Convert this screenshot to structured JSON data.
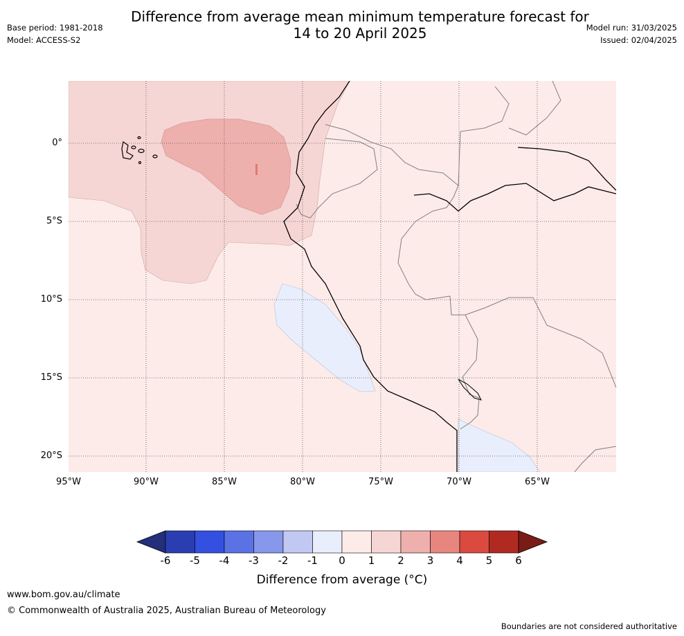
{
  "header": {
    "title_line1": "Difference from average mean minimum temperature forecast for",
    "title_line2": "14 to 20 April 2025",
    "base_period": "Base period: 1981-2018",
    "model": "Model: ACCESS-S2",
    "model_run": "Model run: 31/03/2025",
    "issued": "Issued: 02/04/2025"
  },
  "map": {
    "lat_labels": [
      "0°",
      "5°S",
      "10°S",
      "15°S",
      "20°S"
    ],
    "lon_labels": [
      "95°W",
      "90°W",
      "85°W",
      "80°W",
      "75°W",
      "70°W",
      "65°W"
    ],
    "colors": {
      "anom_0_1": "#fcebe9",
      "anom_1_2": "#f6d6d4",
      "anom_2_3": "#eeb0ad",
      "anom_neg1_0": "#e9eefc"
    }
  },
  "colorbar": {
    "ticks": [
      "-6",
      "-5",
      "-4",
      "-3",
      "-2",
      "-1",
      "0",
      "1",
      "2",
      "3",
      "4",
      "5",
      "6"
    ],
    "colors": [
      "#232f7a",
      "#2a3eb2",
      "#3450e0",
      "#5a72e4",
      "#8797eb",
      "#c1c9f3",
      "#e9eefc",
      "#fcebe9",
      "#f6d6d4",
      "#eeb0ad",
      "#e7867f",
      "#da4a3e",
      "#b02a22",
      "#7a1c16"
    ],
    "title": "Difference from average (°C)"
  },
  "footer": {
    "url": "www.bom.gov.au/climate",
    "copyright": "© Commonwealth of Australia 2025, Australian Bureau of Meteorology",
    "disclaimer": "Boundaries are not considered authoritative"
  }
}
